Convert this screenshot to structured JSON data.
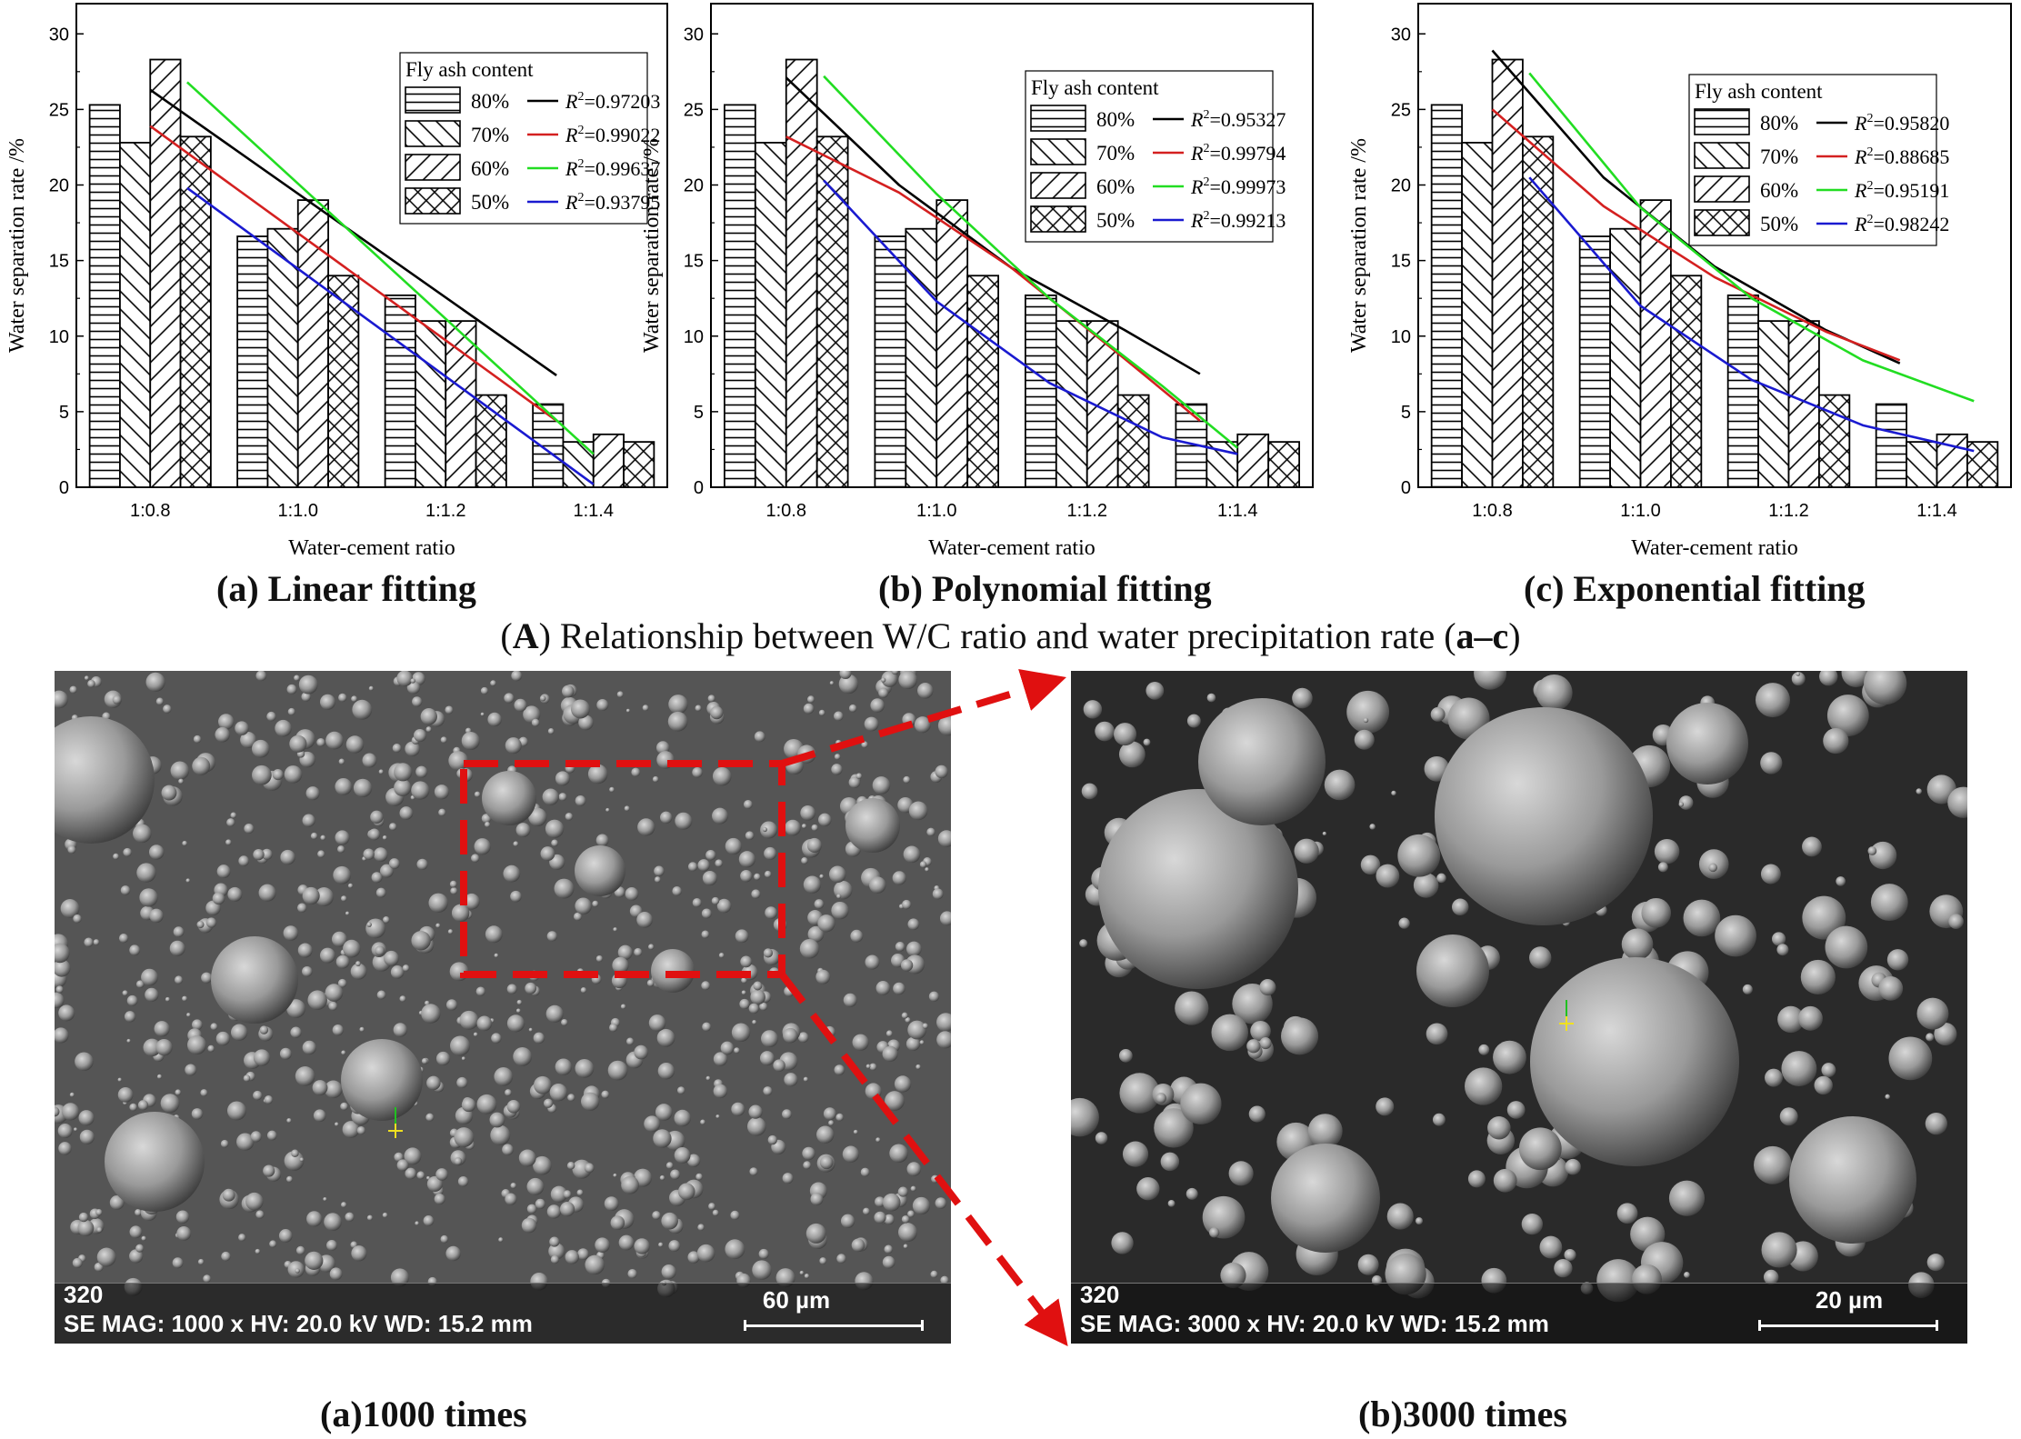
{
  "chart_data": [
    {
      "type": "bar",
      "title": "",
      "xlabel": "Water-cement ratio",
      "ylabel": "Water separation rate /%",
      "ylim": [
        0,
        32
      ],
      "yticks": [
        0,
        5,
        10,
        15,
        20,
        25,
        30
      ],
      "categories": [
        "1:0.8",
        "1:1.0",
        "1:1.2",
        "1:1.4"
      ],
      "legend_title": "Fly ash content",
      "legend_position": "top-right",
      "series": [
        {
          "name": "80%",
          "values": [
            25.3,
            16.6,
            12.7,
            5.5
          ],
          "hatch": "horizontal"
        },
        {
          "name": "70%",
          "values": [
            22.8,
            17.1,
            11.0,
            3.0
          ],
          "hatch": "forward-diagonal"
        },
        {
          "name": "60%",
          "values": [
            28.3,
            19.0,
            11.0,
            3.5
          ],
          "hatch": "back-diagonal"
        },
        {
          "name": "50%",
          "values": [
            23.2,
            14.0,
            6.1,
            3.0
          ],
          "hatch": "cross"
        }
      ],
      "fits": [
        {
          "color": "#000000",
          "r2": "=0.97203",
          "x": [
            0.8,
            1.35
          ],
          "y": [
            26.3,
            7.4
          ]
        },
        {
          "color": "#d42020",
          "r2": "=0.99022",
          "x": [
            0.8,
            1.35
          ],
          "y": [
            23.9,
            4.4
          ]
        },
        {
          "color": "#22dd22",
          "r2": "=0.99637",
          "x": [
            0.85,
            1.4
          ],
          "y": [
            26.8,
            2.2
          ]
        },
        {
          "color": "#1a1ad0",
          "r2": "=0.93795",
          "x": [
            0.85,
            1.4
          ],
          "y": [
            19.8,
            0.2
          ]
        }
      ],
      "caption": "(a) Linear fitting"
    },
    {
      "type": "bar",
      "title": "",
      "xlabel": "Water-cement ratio",
      "ylabel": "Water separation rate /%",
      "ylim": [
        0,
        32
      ],
      "yticks": [
        0,
        5,
        10,
        15,
        20,
        25,
        30
      ],
      "categories": [
        "1:0.8",
        "1:1.0",
        "1:1.2",
        "1:1.4"
      ],
      "legend_title": "Fly ash content",
      "legend_position": "top-right",
      "series": [
        {
          "name": "80%",
          "values": [
            25.3,
            16.6,
            12.7,
            5.5
          ],
          "hatch": "horizontal"
        },
        {
          "name": "70%",
          "values": [
            22.8,
            17.1,
            11.0,
            3.0
          ],
          "hatch": "forward-diagonal"
        },
        {
          "name": "60%",
          "values": [
            28.3,
            19.0,
            11.0,
            3.5
          ],
          "hatch": "back-diagonal"
        },
        {
          "name": "50%",
          "values": [
            23.2,
            14.0,
            6.1,
            3.0
          ],
          "hatch": "cross"
        }
      ],
      "fits": [
        {
          "color": "#000000",
          "r2": "=0.95327",
          "x": [
            0.8,
            0.95,
            1.1,
            1.25,
            1.35
          ],
          "y": [
            27.1,
            20.0,
            14.5,
            10.4,
            7.5
          ]
        },
        {
          "color": "#d42020",
          "r2": "=0.99794",
          "x": [
            0.8,
            0.95,
            1.1,
            1.25,
            1.35
          ],
          "y": [
            23.2,
            19.5,
            14.5,
            8.5,
            4.4
          ]
        },
        {
          "color": "#22dd22",
          "r2": "=0.99973",
          "x": [
            0.85,
            1.0,
            1.15,
            1.3,
            1.4
          ],
          "y": [
            27.2,
            19.4,
            12.5,
            6.7,
            2.6
          ]
        },
        {
          "color": "#1a1ad0",
          "r2": "=0.99213",
          "x": [
            0.85,
            1.0,
            1.15,
            1.3,
            1.4
          ],
          "y": [
            20.3,
            12.3,
            6.9,
            3.3,
            2.2
          ]
        }
      ],
      "caption": "(b) Polynomial fitting"
    },
    {
      "type": "bar",
      "title": "",
      "xlabel": "Water-cement ratio",
      "ylabel": "Water separation rate /%",
      "ylim": [
        0,
        32
      ],
      "yticks": [
        0,
        5,
        10,
        15,
        20,
        25,
        30
      ],
      "categories": [
        "1:0.8",
        "1:1.0",
        "1:1.2",
        "1:1.4"
      ],
      "legend_title": "Fly ash content",
      "legend_position": "top-right",
      "series": [
        {
          "name": "80%",
          "values": [
            25.3,
            16.6,
            12.7,
            5.5
          ],
          "hatch": "horizontal"
        },
        {
          "name": "70%",
          "values": [
            22.8,
            17.1,
            11.0,
            3.0
          ],
          "hatch": "forward-diagonal"
        },
        {
          "name": "60%",
          "values": [
            28.3,
            19.0,
            11.0,
            3.5
          ],
          "hatch": "back-diagonal"
        },
        {
          "name": "50%",
          "values": [
            23.2,
            14.0,
            6.1,
            3.0
          ],
          "hatch": "cross"
        }
      ],
      "fits": [
        {
          "color": "#000000",
          "r2": "=0.95820",
          "x": [
            0.8,
            0.95,
            1.1,
            1.25,
            1.35
          ],
          "y": [
            28.9,
            20.5,
            14.6,
            10.4,
            8.2
          ]
        },
        {
          "color": "#d42020",
          "r2": "=0.88685",
          "x": [
            0.8,
            0.95,
            1.1,
            1.25,
            1.35
          ],
          "y": [
            25.0,
            18.6,
            13.9,
            10.3,
            8.4
          ]
        },
        {
          "color": "#22dd22",
          "r2": "=0.95191",
          "x": [
            0.85,
            1.0,
            1.15,
            1.3,
            1.45
          ],
          "y": [
            27.4,
            18.5,
            12.5,
            8.4,
            5.7
          ]
        },
        {
          "color": "#1a1ad0",
          "r2": "=0.98242",
          "x": [
            0.85,
            1.0,
            1.15,
            1.3,
            1.45
          ],
          "y": [
            20.5,
            12.0,
            7.1,
            4.1,
            2.4
          ]
        }
      ],
      "caption": "(c) Exponential fitting"
    }
  ],
  "figure_caption": {
    "letter": "A",
    "text_before": ") Relationship between W/C ratio and water precipitation rate (",
    "range": "a–c",
    "text_after": ")"
  },
  "sem_images": [
    {
      "id": "320",
      "info": "SE  MAG: 1000 x  HV: 20.0 kV  WD: 15.2 mm",
      "scale": "60 µm",
      "caption": "(a)1000 times"
    },
    {
      "id": "320",
      "info": "SE  MAG: 3000 x  HV: 20.0 kV  WD: 15.2 mm",
      "scale": "20 µm",
      "caption": "(b)3000 times"
    }
  ]
}
